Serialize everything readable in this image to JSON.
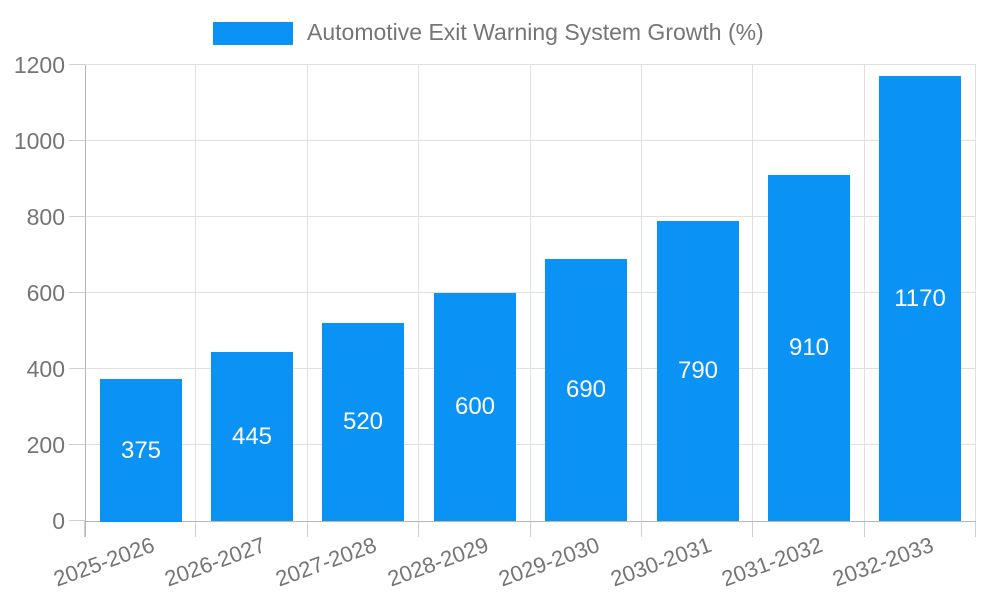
{
  "legend": {
    "label": "Automotive Exit Warning System Growth (%)"
  },
  "chart_data": {
    "type": "bar",
    "title": "Automotive Exit Warning System Growth (%)",
    "series_name": "Automotive Exit Warning System Growth (%)",
    "categories": [
      "2025-2026",
      "2026-2027",
      "2027-2028",
      "2028-2029",
      "2029-2030",
      "2030-2031",
      "2031-2032",
      "2032-2033"
    ],
    "values": [
      375,
      445,
      520,
      600,
      690,
      790,
      910,
      1170
    ],
    "value_labels_shown": [
      375,
      445,
      520,
      600,
      690,
      790,
      910,
      1170
    ],
    "xlabel": "",
    "ylabel": "",
    "ylim": [
      0,
      1200
    ],
    "yticks": [
      0,
      200,
      400,
      600,
      800,
      1000,
      1200
    ],
    "grid": true,
    "legend_position": "top-center",
    "value_label_position": "inside-center",
    "x_label_rotation_deg": -20
  },
  "colors": {
    "bar": "#0a92f5",
    "axis_text": "#757575",
    "value_label": "#ffffff",
    "grid_line": "#e0e0e0",
    "axis_line": "#b6b6b6",
    "tick_mark": "#cfcfcf",
    "background": "#ffffff"
  }
}
